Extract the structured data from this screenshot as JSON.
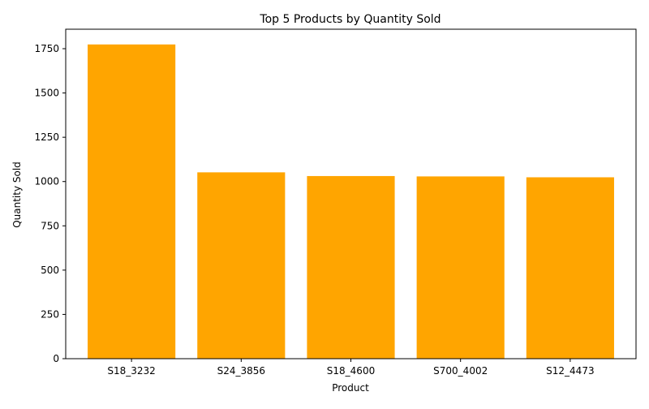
{
  "chart_data": {
    "type": "bar",
    "title": "Top 5 Products by Quantity Sold",
    "xlabel": "Product",
    "ylabel": "Quantity Sold",
    "categories": [
      "S18_3232",
      "S24_3856",
      "S18_4600",
      "S700_4002",
      "S12_4473"
    ],
    "values": [
      1774,
      1052,
      1031,
      1029,
      1024
    ],
    "ylim": [
      0,
      1860
    ],
    "yticks": [
      0,
      250,
      500,
      750,
      1000,
      1250,
      1500,
      1750
    ],
    "bar_color": "#ffa500",
    "grid": false,
    "legend": "none"
  }
}
